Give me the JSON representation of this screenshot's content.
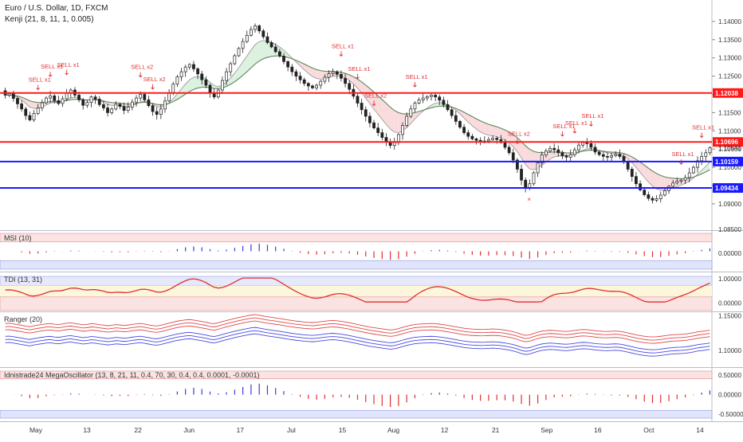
{
  "chart_data": {
    "type": "candlestick",
    "title": "Euro / U.S. Dollar, 1D, FXCM",
    "subtitle": "Kenji (21, 8, 11, 1, 0.005)",
    "x_ticks": [
      "May",
      "13",
      "22",
      "Jun",
      "17",
      "Jul",
      "15",
      "Aug",
      "12",
      "21",
      "Sep",
      "16",
      "Oct",
      "14"
    ],
    "price_axis": {
      "range": [
        1.083,
        1.145
      ],
      "ticks": [
        "1.14000",
        "1.13500",
        "1.13000",
        "1.12500",
        "1.12000",
        "1.11500",
        "1.11000",
        "1.10500",
        "1.10000",
        "1.09500",
        "1.09000"
      ],
      "ylim_note": "1.08500"
    },
    "horizontal_lines": [
      {
        "value": 1.12038,
        "label": "1.12038",
        "color": "#ff1a1a"
      },
      {
        "value": 1.10696,
        "label": "1.10696",
        "color": "#ff1a1a"
      },
      {
        "value": 1.10159,
        "label": "1.10159",
        "color": "#1a1aff"
      },
      {
        "value": 1.09434,
        "label": "1.09434",
        "color": "#1a1aff"
      }
    ],
    "last_price": {
      "value": 1.10541,
      "label": "1.10541"
    },
    "sell_signals": [
      {
        "label": "SELL x1",
        "bar": 8
      },
      {
        "label": "SELL x1",
        "bar": 11
      },
      {
        "label": "SELL x1",
        "bar": 15
      },
      {
        "label": "SELL x2",
        "bar": 33
      },
      {
        "label": "SELL x2",
        "bar": 36
      },
      {
        "label": "SELL x1",
        "bar": 82
      },
      {
        "label": "SELL x1",
        "bar": 86
      },
      {
        "label": "SELL x2",
        "bar": 90
      },
      {
        "label": "SELL x1",
        "bar": 100
      },
      {
        "label": "SELL x2",
        "bar": 125
      },
      {
        "label": "SELL x1",
        "bar": 136
      },
      {
        "label": "SELL x1",
        "bar": 139
      },
      {
        "label": "SELL x1",
        "bar": 143
      },
      {
        "label": "SELL x1",
        "bar": 165
      },
      {
        "label": "SELL x1",
        "bar": 170
      }
    ],
    "panels": [
      {
        "name": "MSI (10)",
        "ticks": [
          "0.00000"
        ]
      },
      {
        "name": "TDI (13, 31)",
        "ticks": [
          "1.00000",
          "0.00000"
        ]
      },
      {
        "name": "Ranger (20)",
        "ticks": [
          "1.15000",
          "1.10000"
        ]
      },
      {
        "name": "Idnistrade24 MegaOscillator (13, 8, 21, 11, 0.4, 70, 30, 0.4, 0.4, 0.0001, -0.0001)",
        "ticks": [
          "0.50000",
          "0.00000",
          "-0.50000"
        ]
      }
    ],
    "price_series": {
      "start": 1.121,
      "closes": [
        1.1198,
        1.1202,
        1.1189,
        1.1174,
        1.116,
        1.1142,
        1.113,
        1.1148,
        1.1163,
        1.1177,
        1.119,
        1.1196,
        1.1183,
        1.1175,
        1.1188,
        1.1204,
        1.1212,
        1.1198,
        1.1185,
        1.117,
        1.1178,
        1.1193,
        1.1187,
        1.1172,
        1.1163,
        1.115,
        1.116,
        1.1173,
        1.1167,
        1.1156,
        1.1165,
        1.1179,
        1.119,
        1.12,
        1.1185,
        1.1169,
        1.1153,
        1.1145,
        1.116,
        1.1182,
        1.1205,
        1.1228,
        1.1248,
        1.1262,
        1.1275,
        1.1282,
        1.127,
        1.1256,
        1.124,
        1.1225,
        1.1203,
        1.1193,
        1.1212,
        1.1238,
        1.1262,
        1.1284,
        1.1306,
        1.1326,
        1.1345,
        1.1362,
        1.1378,
        1.1388,
        1.1374,
        1.1358,
        1.1342,
        1.133,
        1.1317,
        1.1305,
        1.129,
        1.1275,
        1.1262,
        1.125,
        1.124,
        1.123,
        1.1223,
        1.1218,
        1.1225,
        1.1236,
        1.1247,
        1.1257,
        1.1262,
        1.1255,
        1.1244,
        1.123,
        1.1214,
        1.1195,
        1.1176,
        1.1158,
        1.114,
        1.1122,
        1.1108,
        1.1095,
        1.1082,
        1.107,
        1.106,
        1.1068,
        1.109,
        1.1115,
        1.114,
        1.116,
        1.1176,
        1.1185,
        1.119,
        1.1194,
        1.1198,
        1.1193,
        1.1184,
        1.1172,
        1.1158,
        1.1142,
        1.1126,
        1.111,
        1.1095,
        1.1085,
        1.1078,
        1.1074,
        1.107,
        1.1072,
        1.1076,
        1.108,
        1.1076,
        1.1068,
        1.1055,
        1.104,
        1.102,
        1.0995,
        1.0965,
        1.0945,
        1.0955,
        1.0985,
        1.1012,
        1.1034,
        1.1045,
        1.1052,
        1.1048,
        1.104,
        1.1032,
        1.1028,
        1.1035,
        1.1048,
        1.1061,
        1.1068,
        1.1065,
        1.1055,
        1.1042,
        1.1035,
        1.103,
        1.1028,
        1.1032,
        1.1036,
        1.103,
        1.1015,
        1.0995,
        1.0975,
        1.0955,
        1.0938,
        1.0925,
        1.0915,
        1.091,
        1.0914,
        1.0924,
        1.0936,
        1.0948,
        1.0957,
        1.0962,
        1.0965,
        1.0972,
        1.0985,
        1.1,
        1.1018,
        1.103,
        1.104,
        1.1054
      ],
      "volatility": 0.0011
    }
  }
}
